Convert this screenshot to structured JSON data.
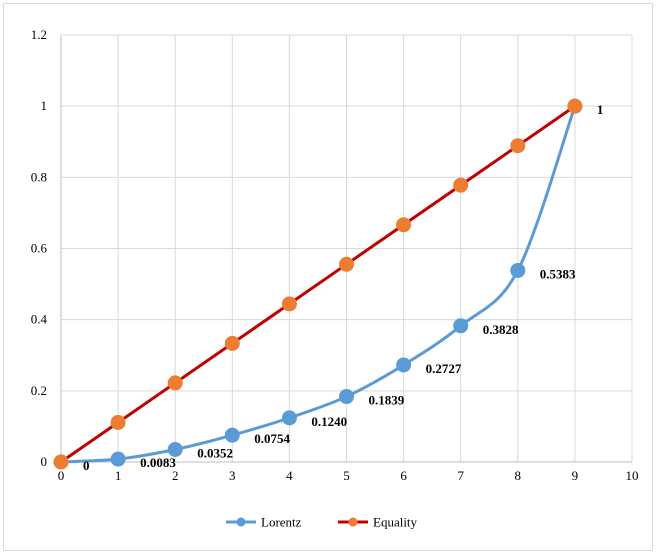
{
  "chart_data": {
    "type": "line",
    "title": "",
    "xlabel": "",
    "ylabel": "",
    "xlim": [
      0,
      10
    ],
    "ylim": [
      0,
      1.2
    ],
    "x_ticks": [
      0,
      1,
      2,
      3,
      4,
      5,
      6,
      7,
      8,
      9,
      10
    ],
    "y_ticks": [
      "0",
      "0.2",
      "0.4",
      "0.6",
      "0.8",
      "1",
      "1.2"
    ],
    "grid": true,
    "legend_position": "bottom",
    "series": [
      {
        "name": "Lorentz",
        "color": "#5b9bd5",
        "smooth": true,
        "x": [
          0,
          1,
          2,
          3,
          4,
          5,
          6,
          7,
          8,
          9
        ],
        "values": [
          0,
          0.0083,
          0.0352,
          0.0754,
          0.124,
          0.1839,
          0.2727,
          0.3828,
          0.5383,
          1
        ],
        "labels": [
          "0",
          "0.0083",
          "0.0352",
          "0.0754",
          "0.1240",
          "0.1839",
          "0.2727",
          "0.3828",
          "0.5383",
          "1"
        ]
      },
      {
        "name": "Equality",
        "color": "#c00000",
        "marker_color": "#ed7d31",
        "smooth": false,
        "x": [
          0,
          1,
          2,
          3,
          4,
          5,
          6,
          7,
          8,
          9
        ],
        "values": [
          0,
          0.1111,
          0.2222,
          0.3333,
          0.4444,
          0.5556,
          0.6667,
          0.7778,
          0.8889,
          1
        ]
      }
    ]
  }
}
